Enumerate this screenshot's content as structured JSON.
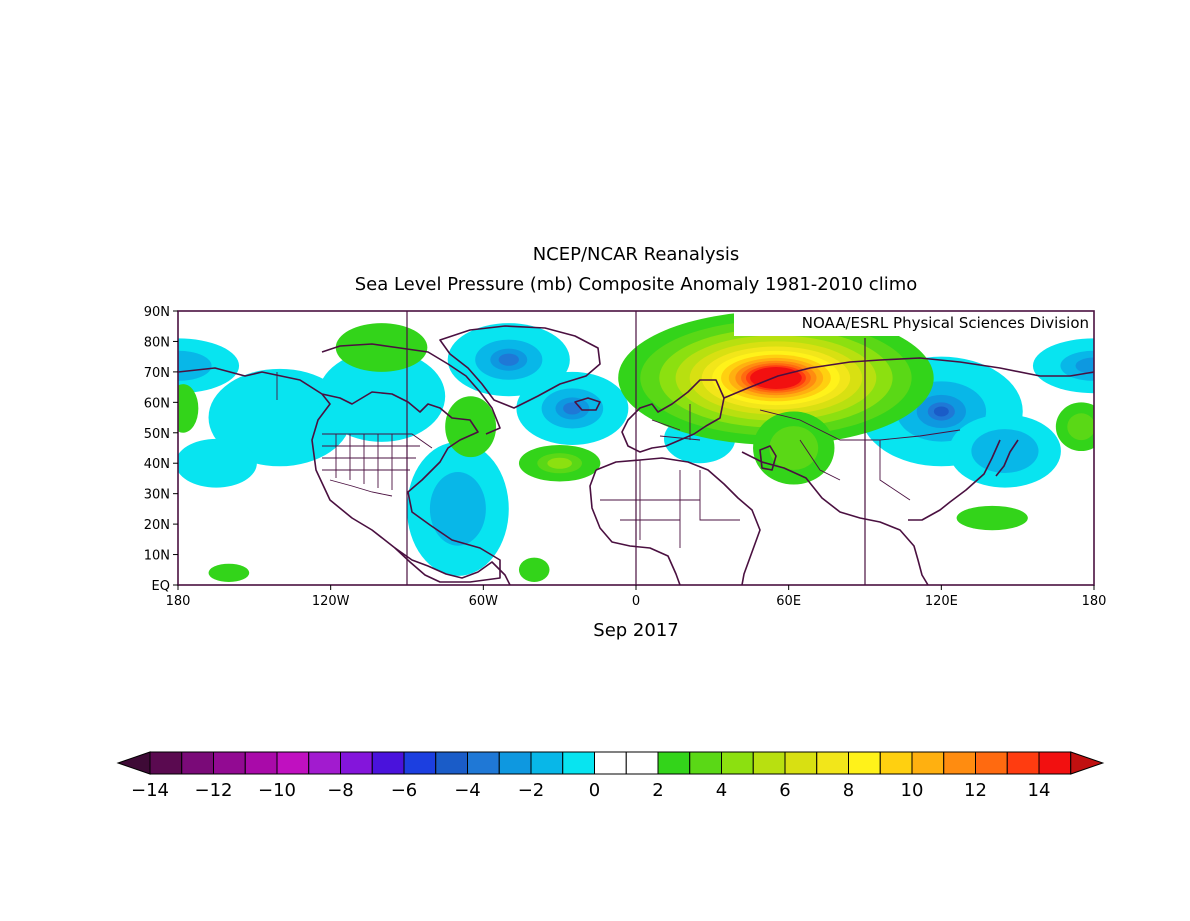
{
  "header": {
    "title": "NCEP/NCAR Reanalysis",
    "subtitle": "Sea Level Pressure (mb) Composite Anomaly 1981-2010 climo"
  },
  "map": {
    "credit": "NOAA/ESRL Physical Sciences Division",
    "period_label": "Sep 2017",
    "lat_labels": [
      "90N",
      "80N",
      "70N",
      "60N",
      "50N",
      "40N",
      "30N",
      "20N",
      "10N",
      "EQ"
    ],
    "lon_labels": [
      "180",
      "120W",
      "60W",
      "0",
      "60E",
      "120E",
      "180"
    ],
    "frame_color": "#4a1040",
    "coast_color": "#4a1040"
  },
  "colorbar": {
    "tick_labels": [
      "-14",
      "-12",
      "-10",
      "-8",
      "-6",
      "-4",
      "-2",
      "0",
      "2",
      "4",
      "6",
      "8",
      "10",
      "12",
      "14"
    ],
    "colors": [
      "#5a0a50",
      "#7a0a78",
      "#920a92",
      "#a90aa9",
      "#c010c0",
      "#a21bcf",
      "#8415db",
      "#4a12dc",
      "#1c3fe0",
      "#1a5cc8",
      "#1f78d6",
      "#0e98e0",
      "#08b7e8",
      "#08e4f0",
      "#ffffff",
      "#ffffff",
      "#33d41a",
      "#5ad816",
      "#8ce010",
      "#b8e010",
      "#d8e012",
      "#f2e61a",
      "#fff21a",
      "#ffd010",
      "#ffb010",
      "#ff8c10",
      "#ff6a10",
      "#ff3c10",
      "#f21010"
    ],
    "under_color": "#3e0a36",
    "over_color": "#c01010"
  }
}
